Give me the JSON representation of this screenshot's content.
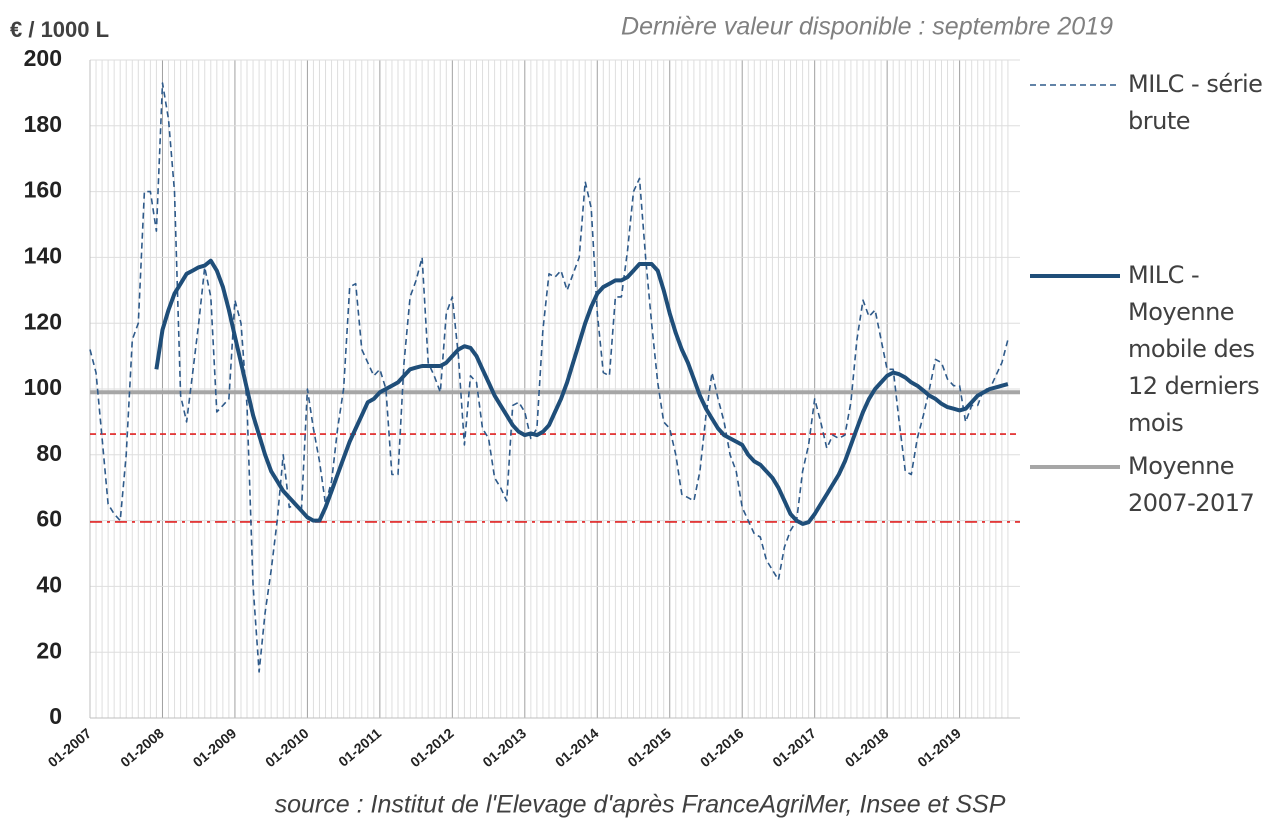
{
  "chart_data": {
    "type": "line",
    "title": "€ / 1000 L",
    "subtitle": "Dernière valeur disponible : septembre 2019",
    "source": "source : Institut de l'Elevage d'après FranceAgriMer, Insee et SSP",
    "x": [
      "01-2007",
      null,
      null,
      null,
      null,
      null,
      null,
      null,
      null,
      null,
      null,
      null,
      "01-2008",
      null,
      null,
      null,
      null,
      null,
      null,
      null,
      null,
      null,
      null,
      null,
      "01-2009",
      null,
      null,
      null,
      null,
      null,
      null,
      null,
      null,
      null,
      null,
      null,
      "01-2010",
      null,
      null,
      null,
      null,
      null,
      null,
      null,
      null,
      null,
      null,
      null,
      "01-2011",
      null,
      null,
      null,
      null,
      null,
      null,
      null,
      null,
      null,
      null,
      null,
      "01-2012",
      null,
      null,
      null,
      null,
      null,
      null,
      null,
      null,
      null,
      null,
      null,
      "01-2013",
      null,
      null,
      null,
      null,
      null,
      null,
      null,
      null,
      null,
      null,
      null,
      "01-2014",
      null,
      null,
      null,
      null,
      null,
      null,
      null,
      null,
      null,
      null,
      null,
      "01-2015",
      null,
      null,
      null,
      null,
      null,
      null,
      null,
      null,
      null,
      null,
      null,
      "01-2016",
      null,
      null,
      null,
      null,
      null,
      null,
      null,
      null,
      null,
      null,
      null,
      "01-2017",
      null,
      null,
      null,
      null,
      null,
      null,
      null,
      null,
      null,
      null,
      null,
      "01-2018",
      null,
      null,
      null,
      null,
      null,
      null,
      null,
      null,
      null,
      null,
      null,
      "01-2019",
      null,
      null,
      null,
      null,
      null,
      null,
      null,
      null
    ],
    "series": [
      {
        "name": "MILC - série brute",
        "color": "#2e5a8a",
        "style": "dashed",
        "values": [
          112,
          105,
          85,
          65,
          62,
          60,
          80,
          115,
          120,
          160,
          160,
          148,
          193,
          182,
          160,
          98,
          90,
          105,
          120,
          137,
          128,
          93,
          95,
          97,
          127,
          120,
          95,
          40,
          14,
          32,
          45,
          60,
          80,
          64,
          65,
          63,
          100,
          88,
          78,
          65,
          72,
          88,
          100,
          131,
          132,
          112,
          108,
          104,
          106,
          100,
          74,
          74,
          108,
          128,
          133,
          140,
          108,
          104,
          99,
          123,
          128,
          110,
          83,
          104,
          102,
          88,
          85,
          73,
          70,
          66,
          95,
          96,
          93,
          85,
          88,
          118,
          135,
          134,
          136,
          130,
          135,
          140,
          163,
          155,
          123,
          105,
          104,
          128,
          128,
          142,
          160,
          164,
          140,
          120,
          102,
          90,
          88,
          80,
          68,
          67,
          66,
          75,
          92,
          105,
          97,
          90,
          80,
          75,
          64,
          60,
          56,
          55,
          48,
          45,
          42,
          52,
          57,
          60,
          75,
          83,
          97,
          90,
          82,
          86,
          85,
          86,
          96,
          115,
          127,
          122,
          124,
          115,
          106,
          106,
          90,
          75,
          74,
          85,
          92,
          100,
          109,
          108,
          103,
          101,
          101,
          90,
          95,
          95,
          100,
          100,
          104,
          108,
          115
        ]
      },
      {
        "name": "MILC - Moyenne mobile des 12 derniers mois",
        "color": "#1f4e79",
        "style": "solid",
        "values": [
          null,
          null,
          null,
          null,
          null,
          null,
          null,
          null,
          null,
          null,
          null,
          106,
          118,
          124,
          129,
          132,
          135,
          136,
          137,
          137.5,
          139,
          136,
          131,
          124,
          116,
          108,
          100,
          92,
          86,
          80,
          75,
          72,
          69,
          67,
          65,
          63,
          61,
          60,
          60,
          64,
          69,
          74,
          79,
          84,
          88,
          92,
          96,
          97,
          99,
          100,
          101,
          102,
          104,
          106,
          106.5,
          107,
          107,
          107,
          107,
          108,
          110,
          112,
          113,
          112.5,
          110,
          106,
          102,
          98,
          95,
          92,
          89,
          87,
          86,
          86.5,
          86,
          87,
          89,
          93,
          97,
          102,
          108,
          114,
          120,
          125,
          129,
          131,
          132,
          133,
          133,
          134,
          136,
          138,
          138,
          138,
          136,
          130,
          123,
          117,
          112,
          108,
          103,
          98,
          94,
          91,
          88,
          86,
          85,
          84,
          83,
          80,
          78,
          77,
          75,
          73,
          70,
          66,
          62,
          60,
          59,
          59.5,
          62,
          65,
          68,
          71,
          74,
          78,
          83,
          88,
          93,
          97,
          100,
          102,
          104,
          105,
          104.5,
          103.5,
          102,
          101,
          99.5,
          98,
          97,
          95.5,
          94.5,
          94,
          93.5,
          94,
          96,
          98,
          99,
          100,
          100.5,
          101,
          101.5
        ]
      }
    ],
    "hlines": [
      {
        "name": "Moyenne 2007-2017",
        "value": 99,
        "color": "#a6a6a6",
        "style": "solid"
      },
      {
        "value": 86.3,
        "color": "#e02020",
        "style": "dashed"
      },
      {
        "value": 59.6,
        "color": "#e02020",
        "style": "dashdot"
      }
    ],
    "ylim": [
      0,
      200
    ],
    "yticks": [
      0,
      20,
      40,
      60,
      80,
      100,
      120,
      140,
      160,
      180,
      200
    ],
    "grid": true,
    "legend": "right"
  }
}
